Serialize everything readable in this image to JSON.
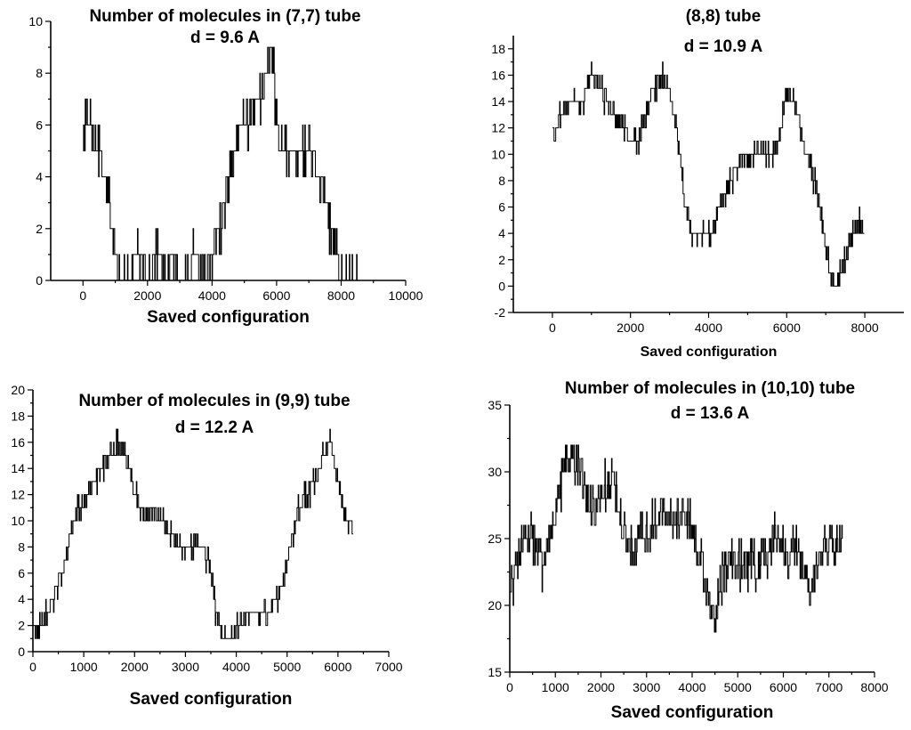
{
  "chart_data": [
    {
      "type": "line",
      "title_lines": [
        "Number of molecules in (7,7) tube",
        "d = 9.6 A"
      ],
      "xlabel": "Saved configuration",
      "ylabel": "",
      "xlim": [
        -1000,
        10000
      ],
      "ylim": [
        0,
        10
      ],
      "xticks": [
        0,
        2000,
        4000,
        6000,
        8000,
        10000
      ],
      "yticks": [
        0,
        2,
        4,
        6,
        8,
        10
      ],
      "tick_labels_x": [
        "0",
        "2000",
        "4000",
        "6000",
        "8000",
        "10000"
      ],
      "tick_labels_y": [
        "0",
        "2",
        "4",
        "6",
        "8",
        "10"
      ],
      "series": [
        {
          "x": [
            0,
            100,
            200,
            300,
            400,
            500,
            600,
            700,
            800,
            900,
            1000,
            1100,
            1300,
            1500,
            1700,
            2000,
            2300,
            2600,
            2900,
            3200,
            3500,
            3700,
            4000,
            4200,
            4400,
            4500,
            4700,
            4900,
            5100,
            5300,
            5500,
            5700,
            5800,
            5900,
            6000,
            6100,
            6300,
            6500,
            6700,
            6900,
            7100,
            7300,
            7500,
            7700,
            7900,
            8000,
            8500
          ],
          "y": [
            5,
            6,
            6,
            6,
            5,
            5,
            4,
            4,
            3,
            2,
            1,
            0,
            0,
            0,
            1,
            0,
            1,
            0,
            1,
            0,
            1,
            0,
            1,
            2,
            3,
            4,
            5,
            6,
            6,
            7,
            7,
            8,
            9,
            8,
            6,
            5,
            5,
            5,
            5,
            5,
            5,
            4,
            3,
            2,
            1,
            0,
            0
          ],
          "noise": 1
        }
      ]
    },
    {
      "type": "line",
      "title_lines": [
        "(8,8) tube",
        "d = 10.9 A"
      ],
      "xlabel": "Saved configuration",
      "ylabel": "",
      "xlim": [
        -1000,
        9000
      ],
      "ylim": [
        -2,
        19
      ],
      "xticks": [
        0,
        2000,
        4000,
        6000,
        8000
      ],
      "yticks": [
        -2,
        0,
        2,
        4,
        6,
        8,
        10,
        12,
        14,
        16,
        18
      ],
      "tick_labels_x": [
        "0",
        "2000",
        "4000",
        "6000",
        "8000"
      ],
      "tick_labels_y": [
        "-2",
        "0",
        "2",
        "4",
        "6",
        "8",
        "10",
        "12",
        "14",
        "16",
        "18"
      ],
      "series": [
        {
          "x": [
            0,
            200,
            400,
            600,
            800,
            1000,
            1200,
            1400,
            1600,
            1800,
            2000,
            2200,
            2400,
            2600,
            2800,
            3000,
            3200,
            3400,
            3600,
            3800,
            4000,
            4200,
            4400,
            4600,
            4800,
            5000,
            5200,
            5400,
            5600,
            5800,
            6000,
            6200,
            6400,
            6600,
            6800,
            7000,
            7200,
            7400,
            7600,
            7800,
            8000
          ],
          "y": [
            11,
            13,
            14,
            14,
            14,
            16,
            15,
            14,
            13,
            12,
            11,
            11,
            13,
            15,
            16,
            15,
            11,
            6,
            4,
            4,
            4,
            5,
            7,
            8,
            10,
            10,
            10,
            10,
            10,
            11,
            15,
            14,
            11,
            9,
            7,
            3,
            0,
            1,
            3,
            5,
            4
          ],
          "noise": 1
        }
      ]
    },
    {
      "type": "line",
      "title_lines": [
        "Number of molecules in (9,9) tube",
        "d = 12.2 A"
      ],
      "xlabel": "Saved configuration",
      "ylabel": "",
      "xlim": [
        0,
        7000
      ],
      "ylim": [
        0,
        20
      ],
      "xticks": [
        0,
        1000,
        2000,
        3000,
        4000,
        5000,
        6000,
        7000
      ],
      "yticks": [
        0,
        2,
        4,
        6,
        8,
        10,
        12,
        14,
        16,
        18,
        20
      ],
      "tick_labels_x": [
        "0",
        "1000",
        "2000",
        "3000",
        "4000",
        "5000",
        "6000",
        "7000"
      ],
      "tick_labels_y": [
        "0",
        "2",
        "4",
        "6",
        "8",
        "10",
        "12",
        "14",
        "16",
        "18",
        "20"
      ],
      "series": [
        {
          "x": [
            0,
            150,
            300,
            450,
            600,
            750,
            900,
            1050,
            1200,
            1350,
            1500,
            1650,
            1800,
            1950,
            2100,
            2250,
            2400,
            2550,
            2700,
            2850,
            3000,
            3150,
            3300,
            3450,
            3600,
            3750,
            3900,
            4050,
            4200,
            4350,
            4500,
            4650,
            4800,
            4950,
            5100,
            5250,
            5400,
            5550,
            5700,
            5850,
            6000,
            6150,
            6300
          ],
          "y": [
            2,
            2,
            3,
            5,
            6,
            9,
            11,
            12,
            13,
            14,
            15,
            16,
            15,
            13,
            11,
            10,
            11,
            10,
            9,
            8,
            8,
            8,
            8,
            7,
            3,
            1,
            1,
            2,
            3,
            3,
            3,
            3,
            4,
            6,
            9,
            11,
            12,
            13,
            15,
            16,
            13,
            10,
            9
          ],
          "noise": 1
        }
      ]
    },
    {
      "type": "line",
      "title_lines": [
        "Number of molecules in (10,10) tube",
        "d = 13.6 A"
      ],
      "xlabel": "Saved configuration",
      "ylabel": "",
      "xlim": [
        0,
        8000
      ],
      "ylim": [
        15,
        35
      ],
      "xticks": [
        0,
        1000,
        2000,
        3000,
        4000,
        5000,
        6000,
        7000,
        8000
      ],
      "yticks": [
        15,
        20,
        25,
        30,
        35
      ],
      "tick_labels_x": [
        "0",
        "1000",
        "2000",
        "3000",
        "4000",
        "5000",
        "6000",
        "7000",
        "8000"
      ],
      "tick_labels_y": [
        "15",
        "20",
        "25",
        "30",
        "35"
      ],
      "series": [
        {
          "x": [
            0,
            150,
            300,
            450,
            600,
            750,
            900,
            1050,
            1200,
            1350,
            1500,
            1650,
            1800,
            1950,
            2100,
            2250,
            2400,
            2550,
            2700,
            2850,
            3000,
            3150,
            3300,
            3450,
            3600,
            3750,
            3900,
            4050,
            4200,
            4350,
            4500,
            4650,
            4800,
            4950,
            5100,
            5250,
            5400,
            5550,
            5700,
            5850,
            6000,
            6150,
            6300,
            6450,
            6600,
            6750,
            6900,
            7050,
            7200,
            7300
          ],
          "y": [
            21,
            23,
            25,
            26,
            24,
            23,
            26,
            28,
            30,
            31,
            31,
            29,
            27,
            28,
            29,
            30,
            27,
            25,
            24,
            26,
            25,
            26,
            27,
            27,
            26,
            27,
            26,
            25,
            23,
            21,
            19,
            22,
            23,
            23,
            23,
            23,
            23,
            24,
            24,
            25,
            24,
            24,
            24,
            23,
            21,
            23,
            24,
            25,
            24,
            25
          ],
          "noise": 2
        }
      ]
    }
  ]
}
